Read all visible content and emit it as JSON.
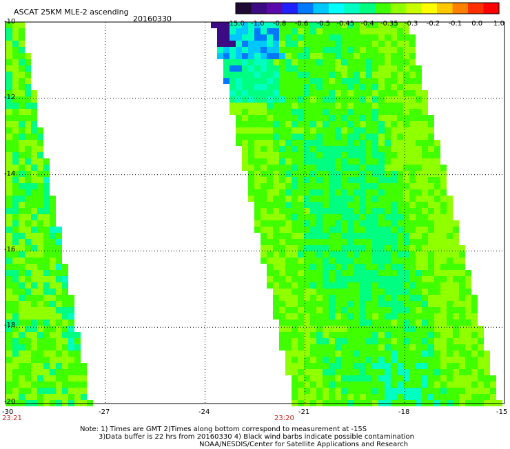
{
  "title": "ASCAT 25KM MLE-2 ascending",
  "date": "20160330",
  "colorbar": {
    "colors": [
      "#1e0a32",
      "#3c0a82",
      "#5a0aaa",
      "#2020ff",
      "#0078ff",
      "#00c8ff",
      "#00ffff",
      "#00ffc0",
      "#00ff80",
      "#40ff00",
      "#90ff00",
      "#c8ff00",
      "#ffff00",
      "#ffc800",
      "#ff8000",
      "#ff3000",
      "#ff0000"
    ],
    "labels": [
      "-15.0",
      "-1.0",
      "-0.8",
      "-0.6",
      "-0.5",
      "-0.45",
      "-0.4",
      "-0.35",
      "-0.3",
      "-0.2",
      "-0.1",
      "0.0",
      "1.0"
    ]
  },
  "axes": {
    "y_ticks": [
      "-10",
      "-12",
      "-14",
      "-16",
      "-18",
      "-20"
    ],
    "x_ticks": [
      "-30",
      "-27",
      "-24",
      "-21",
      "-18",
      "-15"
    ],
    "lat_range": [
      -20,
      -10
    ],
    "lon_range": [
      -30,
      -15
    ],
    "grid": "dotted"
  },
  "time_labels": [
    {
      "lon": -30,
      "text": "23:21"
    },
    {
      "lon": -22.2,
      "text": "23:20"
    }
  ],
  "notes": [
    "Note: 1) Times are GMT 2)Times along bottom correspond to measurement at -15S",
    "3)Data buffer is 22 hrs from 20160330 4) Black wind barbs indicate possible contamination",
    "NOAA/NESDIS/Center for Satellite Applications and Research"
  ],
  "swath_colors": {
    "dominant": "#40ff00",
    "secondary": "#00ff80",
    "light": "#90ff00",
    "cyan": "#00ffc0",
    "blue": "#0078ff",
    "dark": "#3c0a82"
  }
}
